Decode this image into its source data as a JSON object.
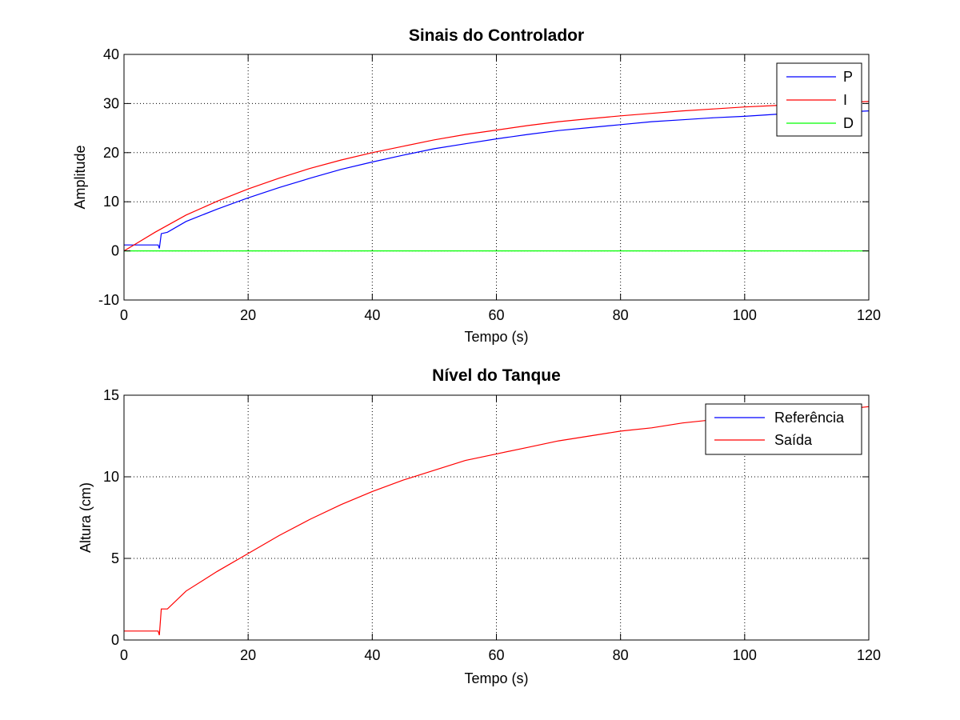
{
  "chart_data": [
    {
      "type": "line",
      "title": "Sinais do Controlador",
      "xlabel": "Tempo (s)",
      "ylabel": "Amplitude",
      "xlim": [
        0,
        120
      ],
      "ylim": [
        -10,
        40
      ],
      "xticks": [
        "0",
        "20",
        "40",
        "60",
        "80",
        "100",
        "120"
      ],
      "yticks": [
        "-10",
        "0",
        "10",
        "20",
        "30",
        "40"
      ],
      "grid": true,
      "legend_position": "top-right",
      "series": [
        {
          "name": "P",
          "color": "#0000ff",
          "x": [
            0,
            5.5,
            5.7,
            6,
            7,
            10,
            15,
            20,
            25,
            30,
            35,
            40,
            45,
            50,
            55,
            60,
            65,
            70,
            75,
            80,
            85,
            90,
            95,
            100,
            105,
            110,
            115,
            120
          ],
          "y": [
            1.2,
            1.2,
            0.5,
            3.5,
            3.8,
            6,
            8.5,
            10.8,
            12.9,
            14.8,
            16.6,
            18.1,
            19.5,
            20.8,
            21.8,
            22.8,
            23.7,
            24.5,
            25.1,
            25.7,
            26.3,
            26.7,
            27.1,
            27.4,
            27.8,
            28.0,
            28.2,
            28.5
          ]
        },
        {
          "name": "I",
          "color": "#ff0000",
          "x": [
            0,
            2,
            5,
            10,
            15,
            20,
            25,
            30,
            35,
            40,
            45,
            50,
            55,
            60,
            65,
            70,
            75,
            80,
            85,
            90,
            95,
            100,
            105,
            110,
            115,
            120
          ],
          "y": [
            0,
            1.5,
            3.8,
            7.3,
            10.1,
            12.6,
            14.8,
            16.8,
            18.5,
            20.0,
            21.3,
            22.6,
            23.7,
            24.6,
            25.5,
            26.3,
            26.9,
            27.5,
            28.0,
            28.5,
            28.9,
            29.3,
            29.6,
            29.9,
            30.2,
            30.4
          ]
        },
        {
          "name": "D",
          "color": "#00ff00",
          "x": [
            0,
            120
          ],
          "y": [
            0,
            0
          ]
        }
      ]
    },
    {
      "type": "line",
      "title": "Nível do Tanque",
      "xlabel": "Tempo (s)",
      "ylabel": "Altura (cm)",
      "xlim": [
        0,
        120
      ],
      "ylim": [
        0,
        15
      ],
      "xticks": [
        "0",
        "20",
        "40",
        "60",
        "80",
        "100",
        "120"
      ],
      "yticks": [
        "0",
        "5",
        "10",
        "15"
      ],
      "grid": true,
      "legend_position": "top-right",
      "series": [
        {
          "name": "Referência",
          "color": "#0000ff",
          "x": [],
          "y": []
        },
        {
          "name": "Saída",
          "color": "#ff0000",
          "x": [
            0,
            5.5,
            5.7,
            6,
            7,
            10,
            15,
            20,
            25,
            30,
            35,
            40,
            45,
            50,
            55,
            60,
            65,
            70,
            75,
            80,
            85,
            90,
            95,
            100,
            105,
            110,
            115,
            120
          ],
          "y": [
            0.55,
            0.55,
            0.3,
            1.9,
            1.9,
            3.0,
            4.2,
            5.3,
            6.4,
            7.4,
            8.3,
            9.1,
            9.8,
            10.4,
            11.0,
            11.4,
            11.8,
            12.2,
            12.5,
            12.8,
            13.0,
            13.3,
            13.5,
            13.7,
            13.8,
            14.0,
            14.1,
            14.3
          ]
        }
      ]
    }
  ]
}
